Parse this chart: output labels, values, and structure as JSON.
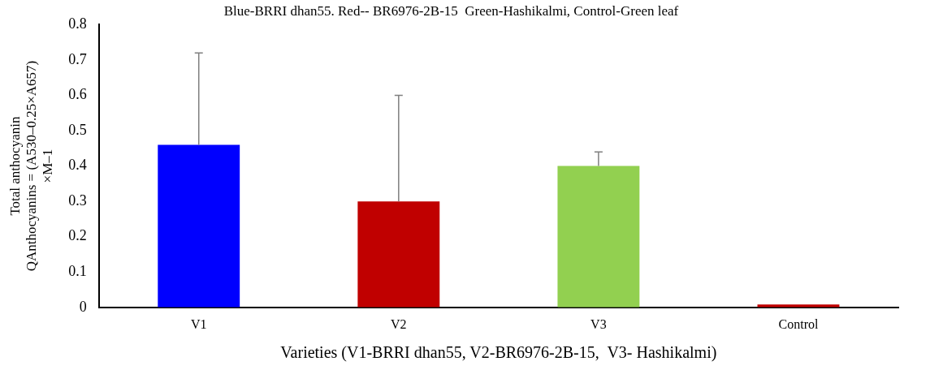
{
  "chart_data": {
    "type": "bar",
    "title": "Blue-BRRI dhan55. Red-- BR6976-2B-15  Green-Hashikalmi, Control-Green leaf",
    "xlabel": "Varieties (V1-BRRI dhan55, V2-BR6976-2B-15,  V3- Hashikalmi)",
    "ylabel": "Total anthocyanin\nQAnthocyanins = (A530–0.25×A657)\n×M–1",
    "categories": [
      "V1",
      "V2",
      "V3",
      "Control"
    ],
    "values": [
      0.46,
      0.3,
      0.4,
      0.008
    ],
    "colors": [
      "#0000ff",
      "#c00000",
      "#92d050",
      "#c00000"
    ],
    "errors": [
      [
        0.46,
        0.72
      ],
      [
        0.3,
        0.6
      ],
      [
        0.4,
        0.44
      ],
      null
    ],
    "ylim": [
      0,
      0.8
    ],
    "yticks": [
      0,
      0.1,
      0.2,
      0.3,
      0.4,
      0.5,
      0.6,
      0.7,
      0.8
    ],
    "grid": false,
    "legend": false
  }
}
